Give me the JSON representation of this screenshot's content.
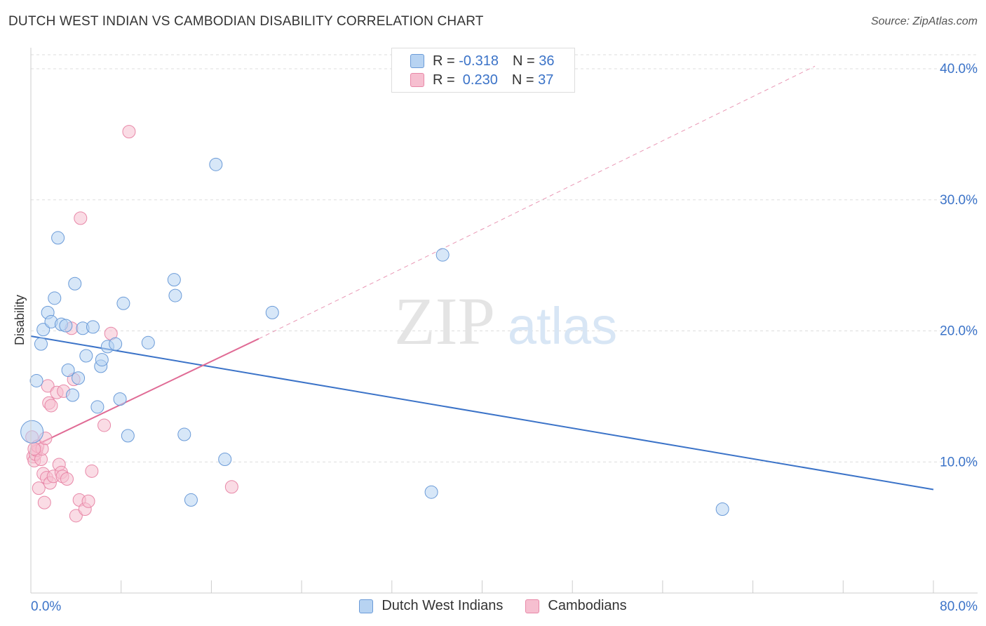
{
  "header": {
    "title": "DUTCH WEST INDIAN VS CAMBODIAN DISABILITY CORRELATION CHART",
    "source": "Source: ZipAtlas.com"
  },
  "legend": {
    "rows": [
      {
        "r_label": "R = ",
        "r_value": "-0.318",
        "n_label": "N = ",
        "n_value": "36"
      },
      {
        "r_label": "R = ",
        "r_value": " 0.230",
        "n_label": "N = ",
        "n_value": "37"
      }
    ]
  },
  "watermark": {
    "zip": "ZIP",
    "atlas": "atlas"
  },
  "colors": {
    "blue_fill": "#b7d3f2",
    "blue_stroke": "#6b9bd8",
    "blue_line": "#3b73c8",
    "pink_fill": "#f6bfd0",
    "pink_stroke": "#e888a8",
    "pink_line": "#e06b95",
    "axis_text": "#3b73c8",
    "grid": "#dddddd"
  },
  "chart_data": {
    "type": "scatter",
    "title": "DUTCH WEST INDIAN VS CAMBODIAN DISABILITY CORRELATION CHART",
    "xlabel": "",
    "ylabel": "Disability",
    "xlim": [
      0,
      80
    ],
    "ylim": [
      0,
      40
    ],
    "x_tick_labels": [
      "0.0%",
      "80.0%"
    ],
    "y_ticks": [
      10,
      20,
      30,
      40
    ],
    "y_tick_labels": [
      "10.0%",
      "20.0%",
      "30.0%",
      "40.0%"
    ],
    "grid": true,
    "legend_position": "top-center",
    "series": [
      {
        "name": "Dutch West Indians",
        "r": -0.318,
        "n": 36,
        "points": [
          [
            0.1,
            12.3
          ],
          [
            0.5,
            16.2
          ],
          [
            0.9,
            19.0
          ],
          [
            1.1,
            20.1
          ],
          [
            1.5,
            21.4
          ],
          [
            1.8,
            20.7
          ],
          [
            2.1,
            22.5
          ],
          [
            2.4,
            27.1
          ],
          [
            2.7,
            20.5
          ],
          [
            3.1,
            20.4
          ],
          [
            3.3,
            17.0
          ],
          [
            3.7,
            15.1
          ],
          [
            3.9,
            23.6
          ],
          [
            4.2,
            16.4
          ],
          [
            4.6,
            20.2
          ],
          [
            4.9,
            18.1
          ],
          [
            5.5,
            20.3
          ],
          [
            5.9,
            14.2
          ],
          [
            6.2,
            17.3
          ],
          [
            6.3,
            17.8
          ],
          [
            6.8,
            18.8
          ],
          [
            7.5,
            19.0
          ],
          [
            7.9,
            14.8
          ],
          [
            8.2,
            22.1
          ],
          [
            8.6,
            12.0
          ],
          [
            10.4,
            19.1
          ],
          [
            12.7,
            23.9
          ],
          [
            12.8,
            22.7
          ],
          [
            13.6,
            12.1
          ],
          [
            14.2,
            7.1
          ],
          [
            16.4,
            32.7
          ],
          [
            17.2,
            10.2
          ],
          [
            21.4,
            21.4
          ],
          [
            35.5,
            7.7
          ],
          [
            36.5,
            25.8
          ],
          [
            61.3,
            6.4
          ]
        ],
        "trend": {
          "x0": 0,
          "y0": 19.6,
          "x1": 80,
          "y1": 7.9
        }
      },
      {
        "name": "Cambodians",
        "r": 0.23,
        "n": 37,
        "points": [
          [
            0.1,
            11.9
          ],
          [
            0.2,
            10.4
          ],
          [
            0.3,
            10.1
          ],
          [
            0.4,
            10.6
          ],
          [
            0.5,
            10.9
          ],
          [
            0.6,
            11.2
          ],
          [
            0.7,
            8.0
          ],
          [
            0.9,
            10.2
          ],
          [
            1.0,
            11.0
          ],
          [
            1.1,
            9.1
          ],
          [
            1.2,
            6.9
          ],
          [
            1.3,
            11.8
          ],
          [
            1.4,
            8.8
          ],
          [
            1.5,
            15.8
          ],
          [
            1.6,
            14.5
          ],
          [
            1.7,
            8.4
          ],
          [
            1.8,
            14.3
          ],
          [
            2.0,
            8.9
          ],
          [
            2.3,
            15.3
          ],
          [
            2.5,
            9.8
          ],
          [
            2.7,
            9.2
          ],
          [
            2.8,
            8.9
          ],
          [
            2.9,
            15.4
          ],
          [
            3.2,
            8.7
          ],
          [
            3.6,
            20.2
          ],
          [
            3.8,
            16.3
          ],
          [
            4.0,
            5.9
          ],
          [
            4.3,
            7.1
          ],
          [
            4.4,
            28.6
          ],
          [
            4.8,
            6.4
          ],
          [
            5.1,
            7.0
          ],
          [
            5.4,
            9.3
          ],
          [
            6.5,
            12.8
          ],
          [
            7.1,
            19.8
          ],
          [
            8.7,
            35.2
          ],
          [
            17.8,
            8.1
          ],
          [
            0.3,
            11.0
          ]
        ],
        "trend": {
          "x0": 0,
          "y0": 11.1,
          "x1": 20.2,
          "y1": 19.4
        },
        "trend_extended": {
          "x0": 20.2,
          "y0": 19.4,
          "x1": 69.5,
          "y1": 40.2
        }
      }
    ]
  }
}
